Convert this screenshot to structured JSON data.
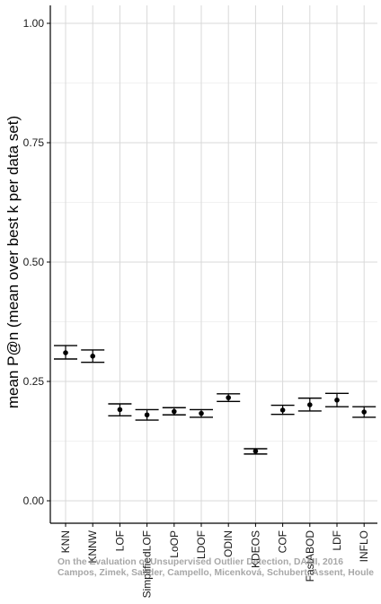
{
  "chart_data": {
    "type": "scatter",
    "subtype": "point-with-error-bars",
    "title": "",
    "xlabel": "",
    "ylabel": "mean P@n (mean over best k per data set)",
    "ylim": [
      0.0,
      1.0
    ],
    "yticks": [
      "0.00",
      "0.25",
      "0.50",
      "0.75",
      "1.00"
    ],
    "grid": true,
    "categories": [
      "KNN",
      "KNNW",
      "LOF",
      "SimplifiedLOF",
      "LoOP",
      "LDOF",
      "ODIN",
      "KDEOS",
      "COF",
      "FastABOD",
      "LDF",
      "INFLO"
    ],
    "series": [
      {
        "mean": [
          0.31,
          0.303,
          0.191,
          0.18,
          0.187,
          0.183,
          0.216,
          0.104,
          0.19,
          0.201,
          0.211,
          0.186
        ],
        "lower": [
          0.297,
          0.29,
          0.178,
          0.169,
          0.18,
          0.175,
          0.208,
          0.098,
          0.181,
          0.188,
          0.197,
          0.175
        ],
        "upper": [
          0.325,
          0.316,
          0.203,
          0.191,
          0.195,
          0.191,
          0.224,
          0.109,
          0.2,
          0.215,
          0.225,
          0.197
        ]
      }
    ],
    "colors": {
      "point": "#000000",
      "grid": "#d9d9d9",
      "axis": "#000000"
    }
  },
  "watermark": {
    "line1": "On the Evaluation of Unsupervised Outlier Detection, DAMI, 2016",
    "line2": "Campos, Zimek, Sander, Campello, Micenková, Schubert, Assent, Houle"
  }
}
